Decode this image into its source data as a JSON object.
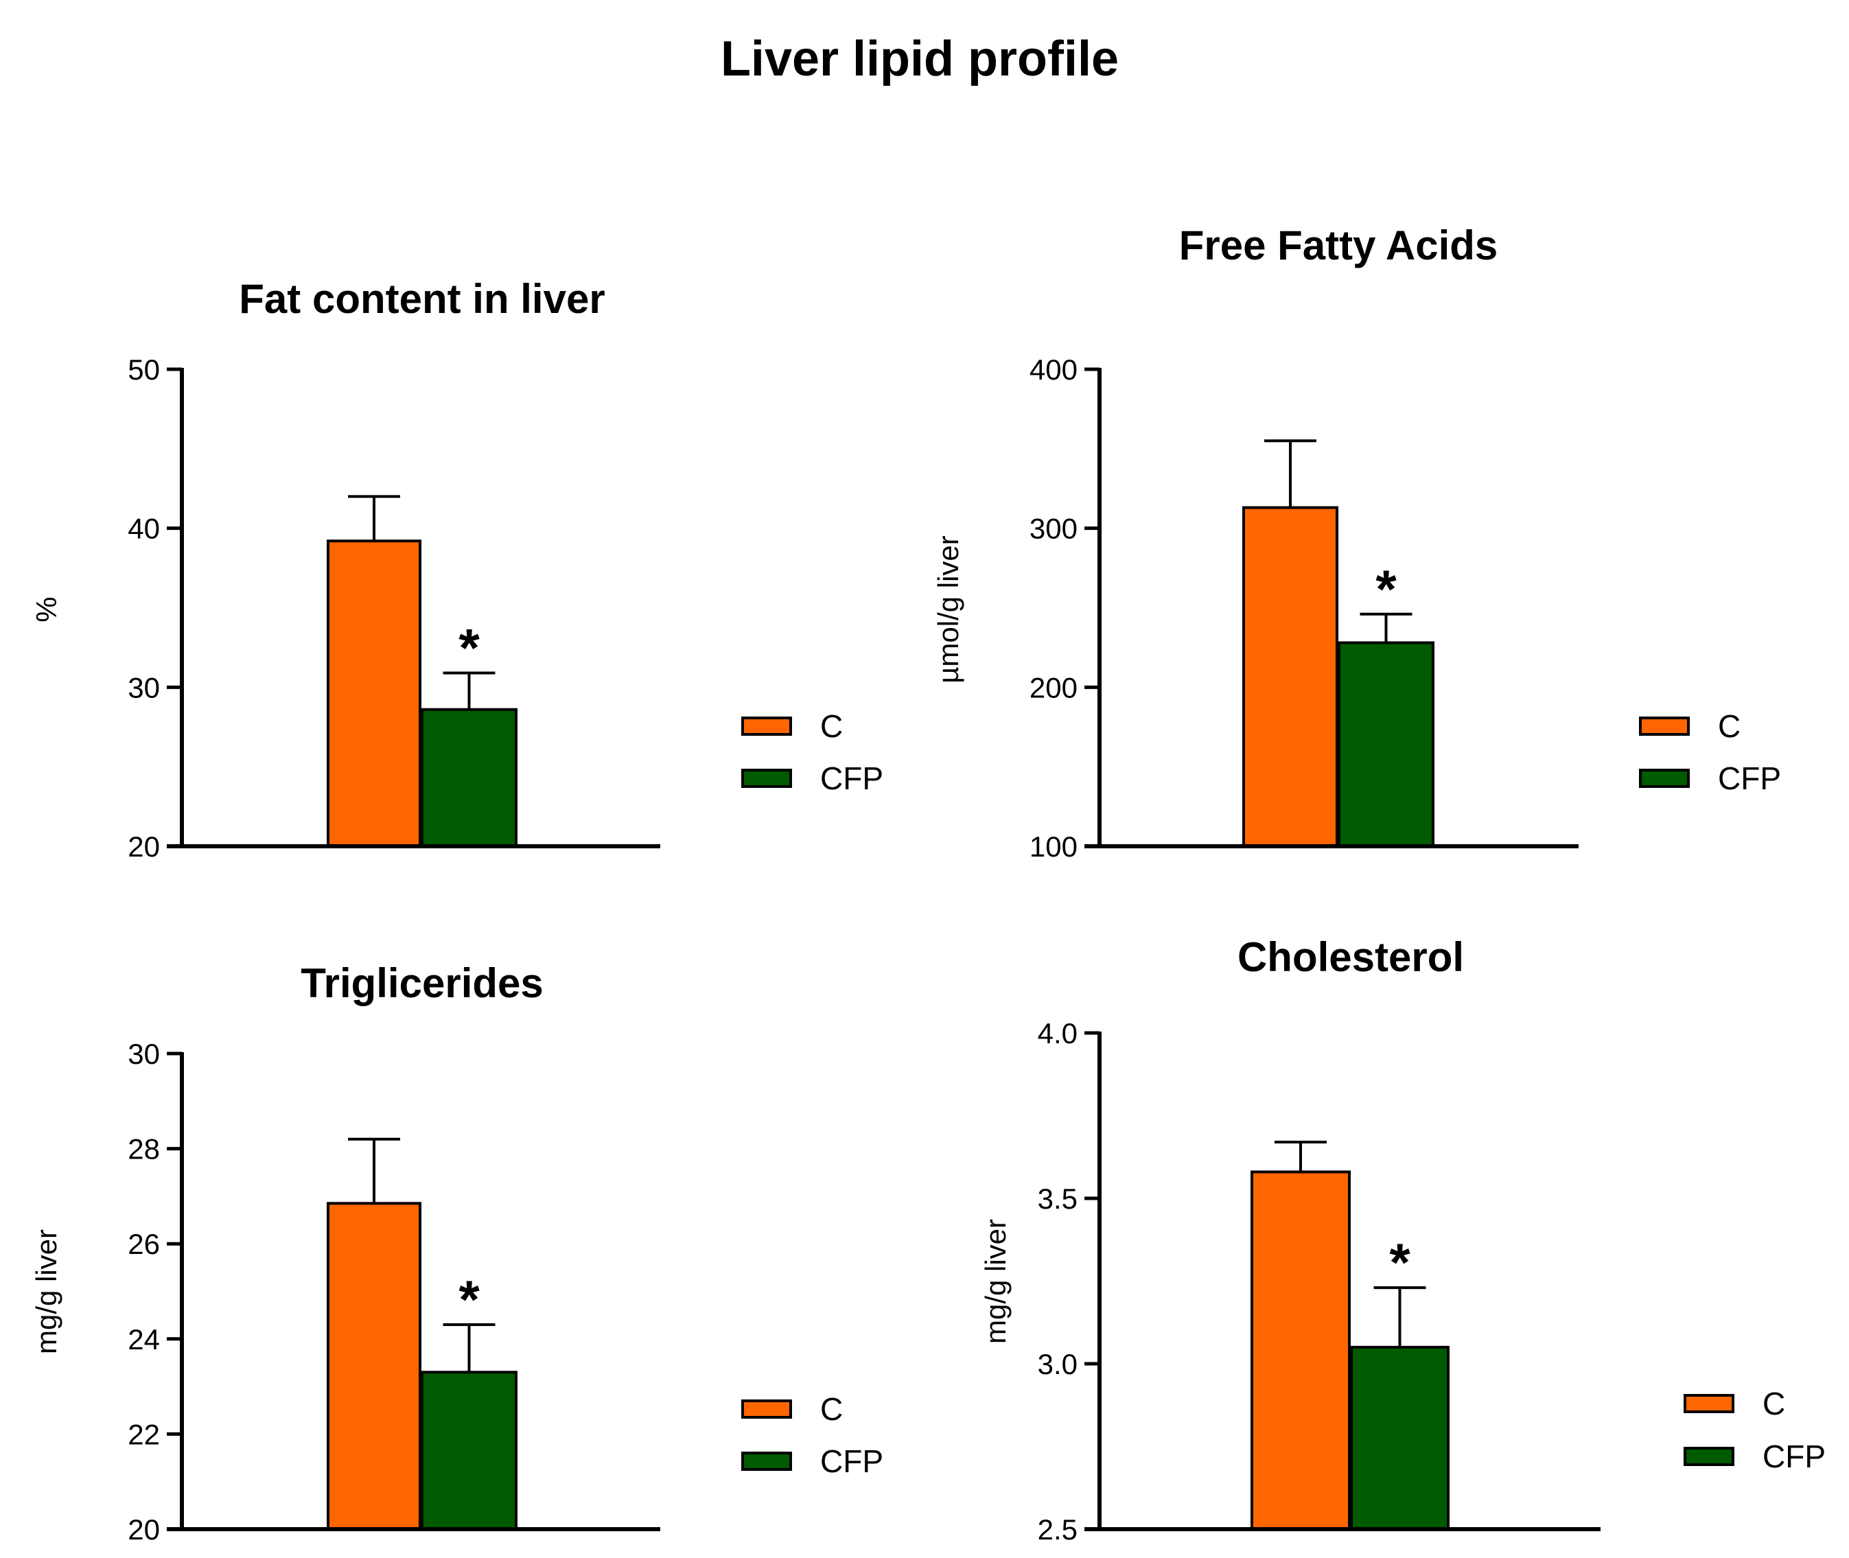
{
  "figure_title": "Liver lipid profile",
  "colors": {
    "C": "#FF6600",
    "CFP": "#005A00",
    "axis": "#000000"
  },
  "chart_data": [
    {
      "type": "bar",
      "title": "Fat content in liver",
      "ylabel": "%",
      "xlabel": "",
      "ylim": [
        20,
        50
      ],
      "yticks": [
        20,
        30,
        40,
        50
      ],
      "tick_labels": [
        "20",
        "30",
        "40",
        "50"
      ],
      "series": [
        {
          "name": "C",
          "value": 39.2,
          "error": 2.8
        },
        {
          "name": "CFP",
          "value": 28.6,
          "error": 2.3
        }
      ],
      "legend": [
        "C",
        "CFP"
      ],
      "legend_position": "right",
      "significance": "*"
    },
    {
      "type": "bar",
      "title": "Free Fatty Acids",
      "ylabel": "µmol/g liver",
      "xlabel": "",
      "ylim": [
        100,
        400
      ],
      "yticks": [
        100,
        200,
        300,
        400
      ],
      "tick_labels": [
        "100",
        "200",
        "300",
        "400"
      ],
      "series": [
        {
          "name": "C",
          "value": 313,
          "error": 42
        },
        {
          "name": "CFP",
          "value": 228,
          "error": 18
        }
      ],
      "legend": [
        "C",
        "CFP"
      ],
      "legend_position": "right",
      "significance": "*"
    },
    {
      "type": "bar",
      "title": "Triglicerides",
      "ylabel": "mg/g liver",
      "xlabel": "",
      "ylim": [
        20,
        30
      ],
      "yticks": [
        20,
        22,
        24,
        26,
        28,
        30
      ],
      "tick_labels": [
        "20",
        "22",
        "24",
        "26",
        "28",
        "30"
      ],
      "series": [
        {
          "name": "C",
          "value": 26.85,
          "error": 1.35
        },
        {
          "name": "CFP",
          "value": 23.3,
          "error": 1.0
        }
      ],
      "legend": [
        "C",
        "CFP"
      ],
      "legend_position": "right",
      "significance": "*"
    },
    {
      "type": "bar",
      "title": "Cholesterol",
      "ylabel": "mg/g liver",
      "xlabel": "",
      "ylim": [
        2.5,
        4.0
      ],
      "yticks": [
        2.5,
        3.0,
        3.5,
        4.0
      ],
      "tick_labels": [
        "2.5",
        "3.0",
        "3.5",
        "4.0"
      ],
      "series": [
        {
          "name": "C",
          "value": 3.58,
          "error": 0.09
        },
        {
          "name": "CFP",
          "value": 3.05,
          "error": 0.18
        }
      ],
      "legend": [
        "C",
        "CFP"
      ],
      "legend_position": "right",
      "significance": "*"
    }
  ]
}
